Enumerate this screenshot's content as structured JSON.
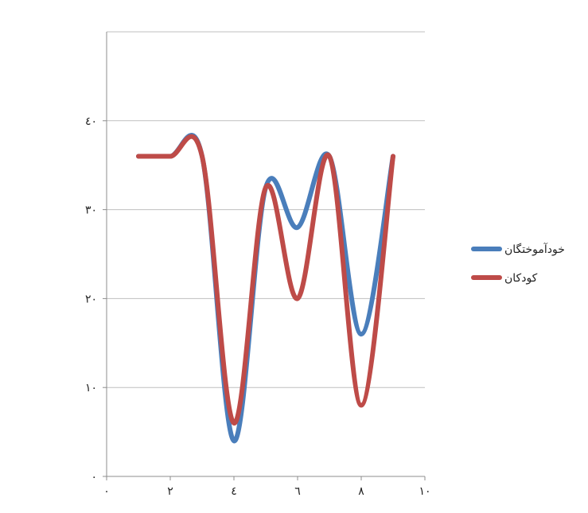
{
  "chart_data": {
    "type": "line",
    "smooth": true,
    "x": [
      1,
      2,
      3,
      4,
      5,
      6,
      7,
      8,
      9
    ],
    "series": [
      {
        "name": "خودآموختگان",
        "color": "#4a7ebb",
        "values": [
          36,
          36,
          36,
          4,
          32.5,
          28,
          36,
          16,
          36
        ]
      },
      {
        "name": "کودکان",
        "color": "#be4b48",
        "values": [
          36,
          36,
          36,
          6,
          32.5,
          20,
          36,
          8,
          36
        ]
      }
    ],
    "xlim": [
      0,
      10
    ],
    "ylim": [
      0,
      50
    ],
    "xticks": [
      0,
      2,
      4,
      6,
      8,
      10
    ],
    "yticks": [
      0,
      10,
      20,
      30,
      40
    ],
    "xtick_labels": [
      "٠",
      "٢",
      "٤",
      "٦",
      "٨",
      "١٠"
    ],
    "ytick_labels": [
      "٠",
      "١٠",
      "٢٠",
      "٣٠",
      "٤٠"
    ],
    "grid": {
      "horizontal": true,
      "vertical": false
    },
    "legend": "right",
    "title": "",
    "xlabel": "",
    "ylabel": ""
  }
}
